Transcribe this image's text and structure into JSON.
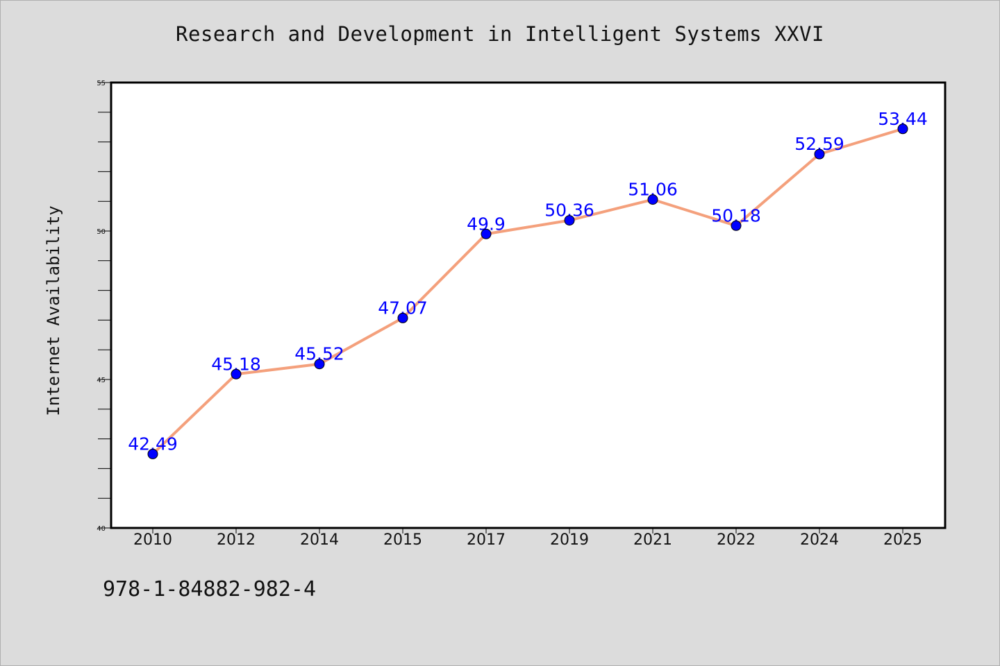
{
  "title": "Research and Development in Intelligent Systems XXVI",
  "footer": "978-1-84882-982-4",
  "colors": {
    "background": "#dcdcdc",
    "plot_background": "#ffffff",
    "line": "#f4a07c",
    "marker": "#0000ff",
    "data_label": "#0000ff"
  },
  "chart_data": {
    "type": "line",
    "title": "Research and Development in Intelligent Systems XXVI",
    "xlabel": "",
    "ylabel": "Internet Availability",
    "categories": [
      "2010",
      "2012",
      "2014",
      "2015",
      "2017",
      "2019",
      "2021",
      "2022",
      "2024",
      "2025"
    ],
    "series": [
      {
        "values": [
          42.49,
          45.18,
          45.52,
          47.07,
          49.9,
          50.36,
          51.06,
          50.18,
          52.59,
          53.44
        ],
        "data_labels": [
          "42.49",
          "45.18",
          "45.52",
          "47.07",
          "49.9",
          "50.36",
          "51.06",
          "50.18",
          "52.59",
          "53.44"
        ]
      }
    ],
    "ylim": [
      40,
      55
    ],
    "y_major_ticks": [
      40,
      45,
      50,
      55
    ],
    "y_tick_labels": [
      "40",
      "45",
      "50",
      "55"
    ],
    "y_minor_ticks": [
      41,
      42,
      43,
      44,
      46,
      47,
      48,
      49,
      51,
      52,
      53,
      54
    ],
    "grid": false,
    "legend": "none"
  }
}
